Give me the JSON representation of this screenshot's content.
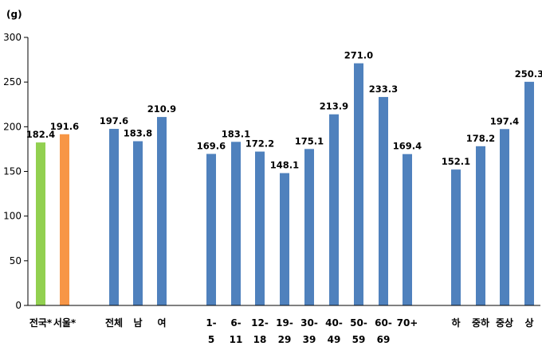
{
  "chart_data": {
    "type": "bar",
    "ylabel": "(g)",
    "ylim": [
      0,
      300
    ],
    "yticks": [
      0,
      50,
      100,
      150,
      200,
      250,
      300
    ],
    "grid": false,
    "legend": "none",
    "colors": {
      "nation": "#92d050",
      "seoul": "#f79646",
      "default": "#4f81bd"
    },
    "categories": [
      "전국*",
      "서울*",
      "전체",
      "남",
      "여",
      "1-\n5",
      "6-\n11",
      "12-\n18",
      "19-\n29",
      "30-\n39",
      "40-\n49",
      "50-\n59",
      "60-\n69",
      "70+",
      "하",
      "중하",
      "중상",
      "상"
    ],
    "values": [
      182.4,
      191.6,
      197.6,
      183.8,
      210.9,
      169.6,
      183.1,
      172.2,
      148.1,
      175.1,
      213.9,
      271.0,
      233.3,
      169.4,
      152.1,
      178.2,
      197.4,
      250.3
    ],
    "value_labels": [
      "182.4",
      "191.6",
      "197.6",
      "183.8",
      "210.9",
      "169.6",
      "183.1",
      "172.2",
      "148.1",
      "175.1",
      "213.9",
      "271.0",
      "233.3",
      "169.4",
      "152.1",
      "178.2",
      "197.4",
      "250.3"
    ],
    "bar_colors": [
      "#92d050",
      "#f79646",
      "#4f81bd",
      "#4f81bd",
      "#4f81bd",
      "#4f81bd",
      "#4f81bd",
      "#4f81bd",
      "#4f81bd",
      "#4f81bd",
      "#4f81bd",
      "#4f81bd",
      "#4f81bd",
      "#4f81bd",
      "#4f81bd",
      "#4f81bd",
      "#4f81bd",
      "#4f81bd"
    ]
  }
}
